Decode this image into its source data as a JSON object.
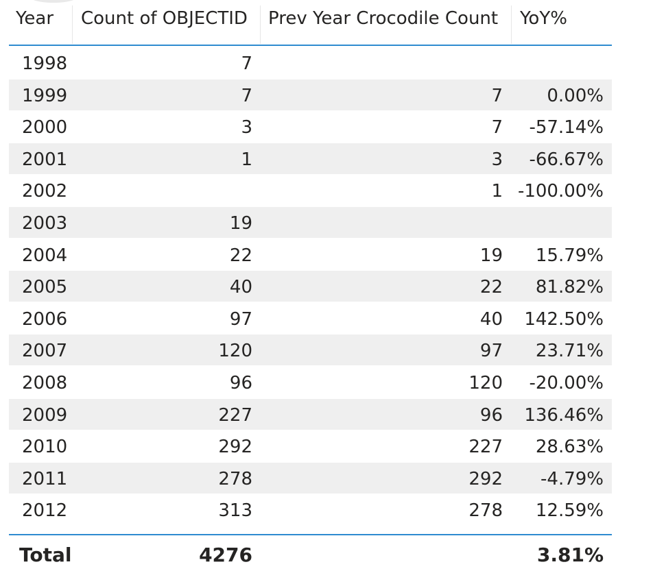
{
  "table": {
    "headers": {
      "year": "Year",
      "count": "Count of OBJECTID",
      "prev": "Prev Year Crocodile Count",
      "yoy": "YoY%"
    },
    "rows": [
      {
        "year": "1998",
        "count": "7",
        "prev": "",
        "yoy": ""
      },
      {
        "year": "1999",
        "count": "7",
        "prev": "7",
        "yoy": "0.00%"
      },
      {
        "year": "2000",
        "count": "3",
        "prev": "7",
        "yoy": "-57.14%"
      },
      {
        "year": "2001",
        "count": "1",
        "prev": "3",
        "yoy": "-66.67%"
      },
      {
        "year": "2002",
        "count": "",
        "prev": "1",
        "yoy": "-100.00%"
      },
      {
        "year": "2003",
        "count": "19",
        "prev": "",
        "yoy": ""
      },
      {
        "year": "2004",
        "count": "22",
        "prev": "19",
        "yoy": "15.79%"
      },
      {
        "year": "2005",
        "count": "40",
        "prev": "22",
        "yoy": "81.82%"
      },
      {
        "year": "2006",
        "count": "97",
        "prev": "40",
        "yoy": "142.50%"
      },
      {
        "year": "2007",
        "count": "120",
        "prev": "97",
        "yoy": "23.71%"
      },
      {
        "year": "2008",
        "count": "96",
        "prev": "120",
        "yoy": "-20.00%"
      },
      {
        "year": "2009",
        "count": "227",
        "prev": "96",
        "yoy": "136.46%"
      },
      {
        "year": "2010",
        "count": "292",
        "prev": "227",
        "yoy": "28.63%"
      },
      {
        "year": "2011",
        "count": "278",
        "prev": "292",
        "yoy": "-4.79%"
      },
      {
        "year": "2012",
        "count": "313",
        "prev": "278",
        "yoy": "12.59%"
      }
    ],
    "total": {
      "label": "Total",
      "count": "4276",
      "prev": "",
      "yoy": "3.81%"
    }
  },
  "colors": {
    "accent": "#2e8bd0",
    "alt_row": "#efefef",
    "text": "#252423"
  }
}
